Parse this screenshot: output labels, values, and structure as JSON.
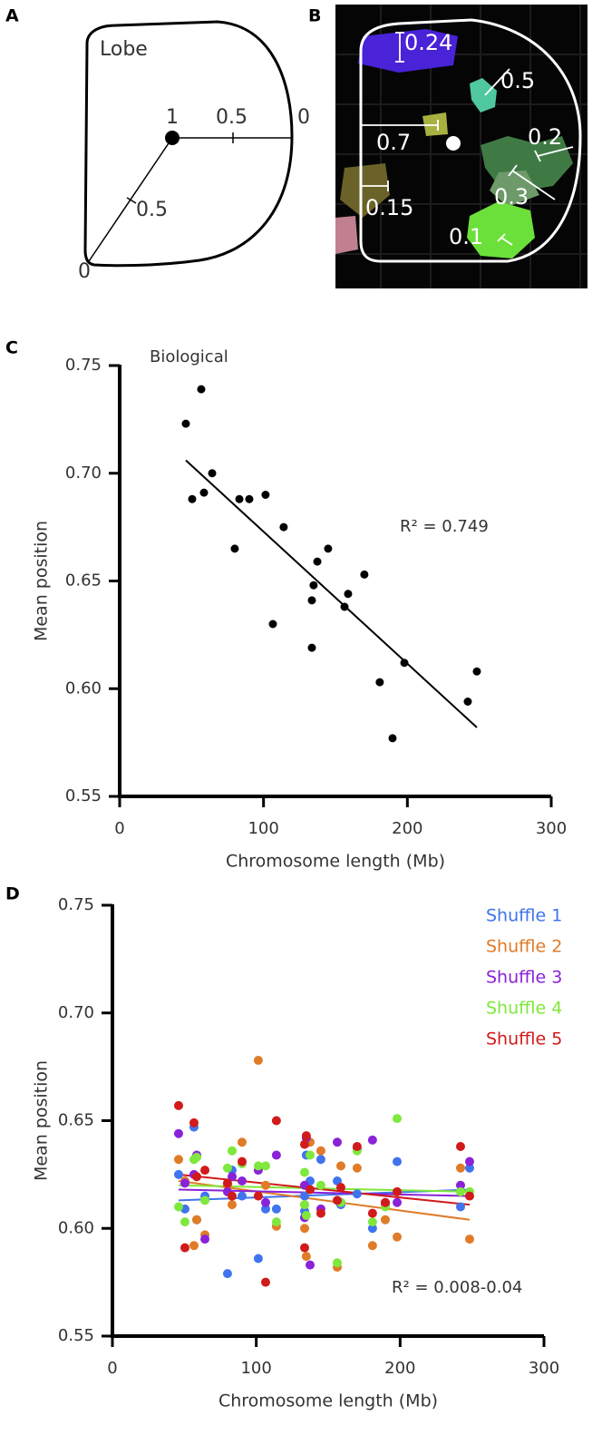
{
  "panel_letters": [
    "A",
    "B",
    "C",
    "D"
  ],
  "panel_a_labels": [
    "Lobe",
    "1",
    "0.5",
    "0",
    "0.5",
    "0"
  ],
  "panel_b_labels": [
    "0.24",
    "0.5",
    "0.2",
    "0.7",
    "0.3",
    "0.15",
    "0.1"
  ],
  "chart_data": [
    {
      "type": "scatter",
      "title": "Biological",
      "annotation": "R² = 0.749",
      "x_label": "Chromosome length (Mb)",
      "y_label": "Mean position",
      "xlim": [
        0,
        300
      ],
      "ylim": [
        0.55,
        0.75
      ],
      "xticks": [
        0,
        100,
        200,
        300
      ],
      "yticks": [
        0.55,
        {
          "value": 0.6,
          "label": "0.60"
        },
        0.65,
        {
          "value": 0.7,
          "label": "0.70"
        },
        0.75
      ],
      "x": [
        46,
        56.7,
        64.3,
        50.4,
        58.6,
        83.2,
        90.1,
        101.4,
        80,
        114,
        106.5,
        144.9,
        137.4,
        134.8,
        133.6,
        133.6,
        156.3,
        158.8,
        170.1,
        180.8,
        197.9,
        189.7,
        242,
        248.3
      ],
      "series": [
        {
          "color": "#000000",
          "values": [
            0.723,
            0.739,
            0.7,
            0.688,
            0.691,
            0.688,
            0.688,
            0.69,
            0.665,
            0.675,
            0.63,
            0.665,
            0.659,
            0.648,
            0.641,
            0.619,
            0.638,
            0.644,
            0.653,
            0.603,
            0.612,
            0.577,
            0.594,
            0.608
          ],
          "trend": {
            "x": [
              46,
              248.3
            ],
            "y": [
              0.706,
              0.582
            ]
          }
        }
      ]
    },
    {
      "type": "scatter",
      "annotation": "R² = 0.008-0.04",
      "x_label": "Chromosome length (Mb)",
      "y_label": "Mean position",
      "xlim": [
        0,
        300
      ],
      "ylim": [
        0.55,
        0.75
      ],
      "xticks": [
        0,
        100,
        200,
        300
      ],
      "yticks": [
        0.55,
        {
          "value": 0.6,
          "label": "0.60"
        },
        0.65,
        {
          "value": 0.7,
          "label": "0.70"
        },
        0.75
      ],
      "legend": "top-right",
      "x": [
        46,
        56.7,
        64.3,
        50.4,
        58.6,
        83.2,
        90.1,
        101.4,
        80,
        114,
        106.5,
        144.9,
        137.4,
        134.8,
        133.6,
        133.6,
        156.3,
        158.8,
        170.1,
        180.8,
        197.9,
        189.7,
        242,
        248.3
      ],
      "series": [
        {
          "name": "Shuffle 1",
          "color": "#3f74ee",
          "values": [
            0.625,
            0.647,
            0.615,
            0.609,
            0.604,
            0.627,
            0.615,
            0.586,
            0.579,
            0.609,
            0.609,
            0.632,
            0.622,
            0.634,
            0.608,
            0.615,
            0.622,
            0.611,
            0.616,
            0.6,
            0.631,
            0.612,
            0.61,
            0.628
          ],
          "trend": {
            "x": [
              46,
              248.3
            ],
            "y": [
              0.613,
              0.618
            ]
          }
        },
        {
          "name": "Shuffle 2",
          "color": "#e07b28",
          "values": [
            0.632,
            0.592,
            0.597,
            0.622,
            0.604,
            0.611,
            0.64,
            0.678,
            0.62,
            0.601,
            0.62,
            0.636,
            0.64,
            0.587,
            0.6,
            0.611,
            0.582,
            0.629,
            0.628,
            0.592,
            0.596,
            0.604,
            0.628,
            0.595
          ],
          "trend": {
            "x": [
              46,
              248.3
            ],
            "y": [
              0.622,
              0.604
            ]
          }
        },
        {
          "name": "Shuffle 3",
          "color": "#8a22d8",
          "values": [
            0.644,
            0.625,
            0.595,
            0.621,
            0.634,
            0.624,
            0.622,
            0.627,
            0.617,
            0.634,
            0.612,
            0.609,
            0.583,
            0.642,
            0.62,
            0.605,
            0.64,
            0.612,
            0.637,
            0.641,
            0.612,
            0.611,
            0.62,
            0.631
          ],
          "trend": {
            "x": [
              46,
              248.3
            ],
            "y": [
              0.618,
              0.615
            ]
          }
        },
        {
          "name": "Shuffle 4",
          "color": "#7ee83c",
          "values": [
            0.61,
            0.632,
            0.613,
            0.603,
            0.633,
            0.636,
            0.63,
            0.629,
            0.628,
            0.603,
            0.629,
            0.62,
            0.634,
            0.606,
            0.626,
            0.611,
            0.584,
            0.612,
            0.636,
            0.603,
            0.651,
            0.61,
            0.617,
            0.617
          ],
          "trend": {
            "x": [
              46,
              248.3
            ],
            "y": [
              0.62,
              0.617
            ]
          }
        },
        {
          "name": "Shuffle 5",
          "color": "#d11a1a",
          "values": [
            0.657,
            0.649,
            0.627,
            0.591,
            0.624,
            0.615,
            0.631,
            0.615,
            0.621,
            0.65,
            0.575,
            0.607,
            0.618,
            0.643,
            0.591,
            0.639,
            0.613,
            0.619,
            0.638,
            0.607,
            0.617,
            0.612,
            0.638,
            0.615
          ],
          "trend": {
            "x": [
              46,
              248.3
            ],
            "y": [
              0.625,
              0.611
            ]
          }
        }
      ]
    }
  ]
}
